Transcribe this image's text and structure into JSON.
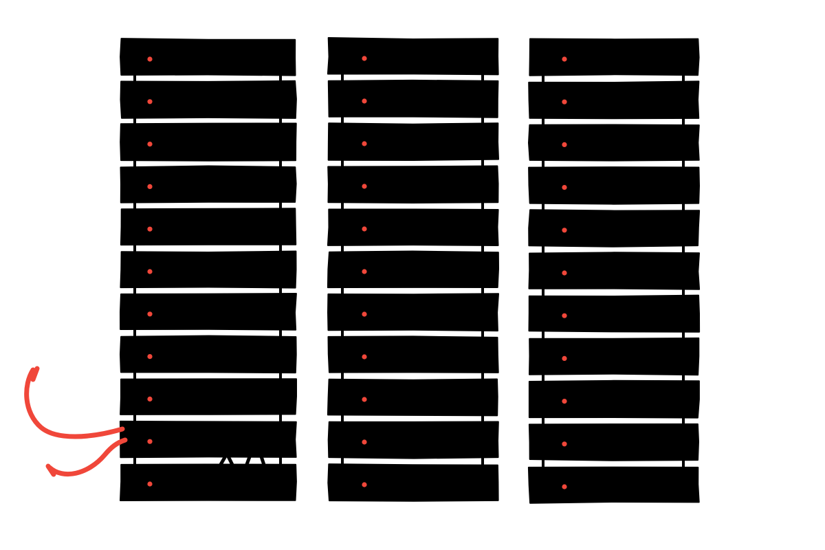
{
  "colors": {
    "background": "#ffffff",
    "server": "#000000",
    "status_light": "#f0473a",
    "cable": "#f0473a"
  },
  "illustration": {
    "racks": [
      {
        "units": 11,
        "status_lights": 11
      },
      {
        "units": 11,
        "status_lights": 11
      },
      {
        "units": 11,
        "status_lights": 11
      }
    ],
    "cable_icon": "unplugged-red-cable-icon"
  }
}
